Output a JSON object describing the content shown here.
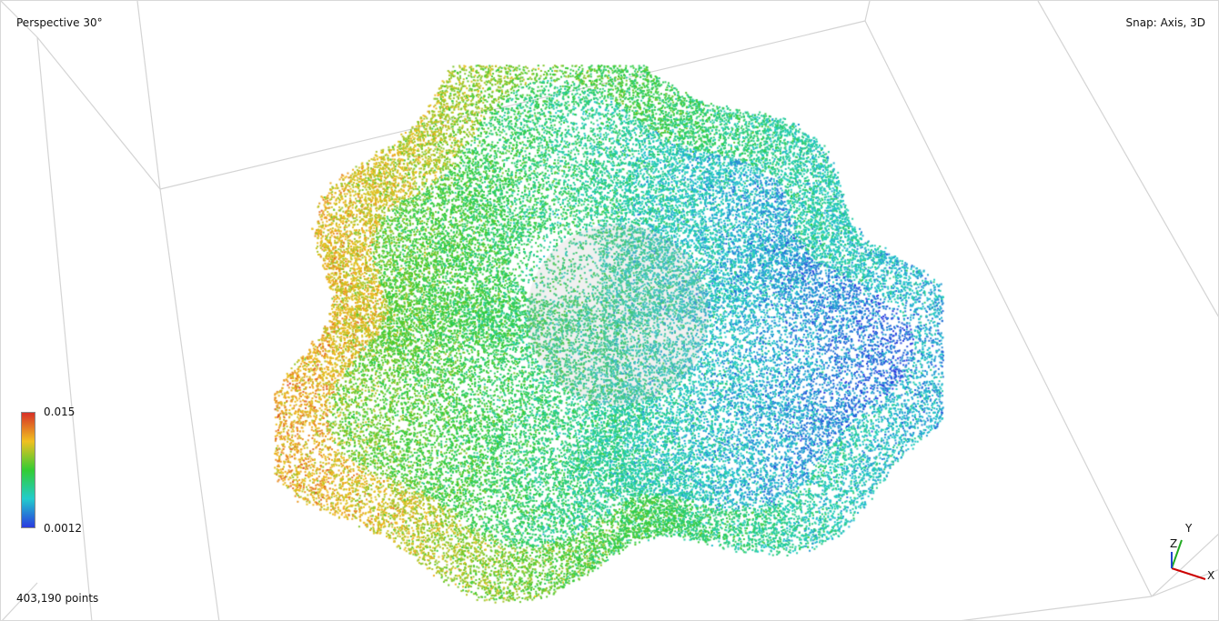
{
  "viewport": {
    "projection_label": "Perspective 30°",
    "snap_label": "Snap: Axis, 3D",
    "point_count_label": "403,190 points",
    "background_color": "#ffffff",
    "bounding_box_color": "#d0d0d0"
  },
  "colorbar": {
    "max_label": "0.015",
    "min_label": "0.0012",
    "colormap": [
      "#d73027",
      "#f0c020",
      "#33cc33",
      "#22cccc",
      "#2a3adf"
    ]
  },
  "axis_gizmo": {
    "x_label": "X",
    "y_label": "Y",
    "z_label": "Z",
    "x_color": "#cc0000",
    "y_color": "#22aa22",
    "z_color": "#2244cc"
  }
}
